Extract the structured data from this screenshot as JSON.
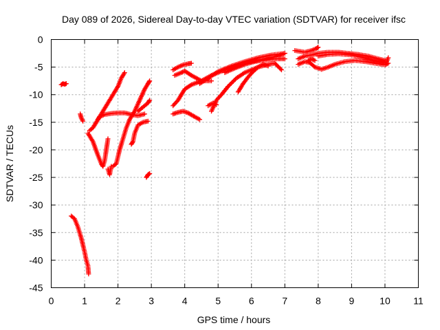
{
  "chart_data": {
    "type": "scatter",
    "title": "Day 089 of 2026, Sidereal Day-to-day VTEC variation (SDTVAR) for receiver ifsc",
    "xlabel": "GPS time / hours",
    "ylabel": "SDTVAR / TECUs",
    "xlim": [
      0,
      11
    ],
    "ylim": [
      -45,
      0
    ],
    "xticks": [
      "0",
      "1",
      "2",
      "3",
      "4",
      "5",
      "6",
      "7",
      "8",
      "9",
      "10",
      "11"
    ],
    "yticks": [
      "0",
      "-5",
      "-10",
      "-15",
      "-20",
      "-25",
      "-30",
      "-35",
      "-40",
      "-45"
    ],
    "grid": true,
    "marker": "plus",
    "color": "#ff0000",
    "series": [
      {
        "points": [
          [
            0.3,
            -8.2
          ],
          [
            0.35,
            -8.0
          ],
          [
            0.4,
            -8.1
          ],
          [
            0.45,
            -8.0
          ]
        ]
      },
      {
        "points": [
          [
            0.6,
            -32.0
          ],
          [
            0.7,
            -32.5
          ],
          [
            0.8,
            -34.0
          ],
          [
            0.9,
            -36.0
          ],
          [
            1.0,
            -38.5
          ],
          [
            1.05,
            -40.0
          ],
          [
            1.1,
            -41.0
          ],
          [
            1.12,
            -42.5
          ]
        ]
      },
      {
        "points": [
          [
            0.87,
            -13.5
          ],
          [
            0.9,
            -14.2
          ],
          [
            0.95,
            -14.8
          ]
        ]
      },
      {
        "points": [
          [
            1.1,
            -17.0
          ],
          [
            1.25,
            -18.5
          ],
          [
            1.4,
            -21.0
          ],
          [
            1.5,
            -22.5
          ],
          [
            1.55,
            -23.0
          ],
          [
            1.6,
            -22.0
          ],
          [
            1.65,
            -20.0
          ],
          [
            1.7,
            -18.0
          ]
        ]
      },
      {
        "points": [
          [
            1.15,
            -16.5
          ],
          [
            1.25,
            -16.0
          ],
          [
            1.35,
            -15.0
          ],
          [
            1.45,
            -14.0
          ],
          [
            1.6,
            -13.6
          ],
          [
            1.8,
            -13.4
          ],
          [
            2.0,
            -13.3
          ],
          [
            2.2,
            -13.3
          ],
          [
            2.4,
            -13.6
          ],
          [
            2.6,
            -13.8
          ],
          [
            2.8,
            -13.5
          ]
        ]
      },
      {
        "points": [
          [
            1.4,
            -14.5
          ],
          [
            1.55,
            -13.0
          ],
          [
            1.7,
            -11.5
          ],
          [
            1.85,
            -10.0
          ],
          [
            2.0,
            -8.5
          ],
          [
            2.1,
            -7.0
          ],
          [
            2.2,
            -6.0
          ]
        ]
      },
      {
        "points": [
          [
            1.7,
            -23.5
          ],
          [
            1.75,
            -24.5
          ],
          [
            1.8,
            -23.0
          ]
        ]
      },
      {
        "points": [
          [
            1.85,
            -23.0
          ],
          [
            1.95,
            -22.5
          ],
          [
            2.05,
            -20.0
          ],
          [
            2.15,
            -18.0
          ],
          [
            2.25,
            -16.0
          ],
          [
            2.35,
            -14.5
          ],
          [
            2.5,
            -13.0
          ],
          [
            2.65,
            -11.0
          ],
          [
            2.8,
            -9.0
          ],
          [
            2.9,
            -8.0
          ],
          [
            2.95,
            -7.5
          ]
        ]
      },
      {
        "points": [
          [
            2.4,
            -19.0
          ],
          [
            2.45,
            -18.5
          ],
          [
            2.5,
            -17.0
          ],
          [
            2.6,
            -15.5
          ],
          [
            2.75,
            -15.0
          ],
          [
            2.9,
            -14.8
          ]
        ]
      },
      {
        "points": [
          [
            2.85,
            -25.0
          ],
          [
            2.9,
            -24.5
          ],
          [
            2.95,
            -24.3
          ]
        ]
      },
      {
        "points": [
          [
            2.6,
            -13.0
          ],
          [
            2.7,
            -12.5
          ],
          [
            2.8,
            -12.0
          ],
          [
            2.9,
            -11.5
          ],
          [
            2.95,
            -11.0
          ]
        ]
      },
      {
        "points": [
          [
            3.65,
            -13.5
          ],
          [
            3.8,
            -13.2
          ],
          [
            3.95,
            -13.0
          ],
          [
            4.1,
            -13.3
          ],
          [
            4.3,
            -14.0
          ],
          [
            4.45,
            -14.5
          ]
        ]
      },
      {
        "points": [
          [
            3.65,
            -5.5
          ],
          [
            3.8,
            -5.0
          ],
          [
            3.95,
            -4.6
          ],
          [
            4.1,
            -4.4
          ],
          [
            4.2,
            -4.3
          ]
        ]
      },
      {
        "points": [
          [
            3.65,
            -12.0
          ],
          [
            3.8,
            -11.0
          ],
          [
            4.0,
            -9.0
          ],
          [
            4.2,
            -8.2
          ],
          [
            4.5,
            -7.5
          ],
          [
            4.8,
            -6.5
          ],
          [
            5.2,
            -5.5
          ],
          [
            5.6,
            -4.8
          ],
          [
            6.0,
            -4.0
          ],
          [
            6.4,
            -3.5
          ],
          [
            6.8,
            -3.0
          ],
          [
            7.0,
            -2.5
          ]
        ]
      },
      {
        "points": [
          [
            3.7,
            -6.5
          ],
          [
            3.9,
            -6.0
          ],
          [
            4.0,
            -5.7
          ],
          [
            4.2,
            -6.5
          ],
          [
            4.5,
            -7.5
          ],
          [
            4.8,
            -7.5
          ]
        ]
      },
      {
        "points": [
          [
            4.45,
            -8.0
          ],
          [
            4.7,
            -7.0
          ],
          [
            5.0,
            -5.8
          ],
          [
            5.4,
            -4.8
          ],
          [
            5.8,
            -4.0
          ],
          [
            6.2,
            -3.3
          ],
          [
            6.6,
            -2.8
          ],
          [
            7.0,
            -2.5
          ]
        ]
      },
      {
        "points": [
          [
            4.7,
            -12.0
          ],
          [
            4.85,
            -11.5
          ],
          [
            4.95,
            -11.8
          ]
        ]
      },
      {
        "points": [
          [
            4.8,
            -13.0
          ],
          [
            4.95,
            -11.0
          ],
          [
            5.1,
            -10.0
          ],
          [
            5.3,
            -8.5
          ],
          [
            5.55,
            -7.0
          ],
          [
            5.8,
            -6.0
          ],
          [
            6.0,
            -5.5
          ],
          [
            6.2,
            -5.0
          ],
          [
            6.5,
            -4.5
          ],
          [
            6.7,
            -4.3
          ],
          [
            6.9,
            -5.5
          ]
        ]
      },
      {
        "points": [
          [
            5.6,
            -9.5
          ],
          [
            5.75,
            -8.0
          ],
          [
            5.9,
            -6.8
          ],
          [
            6.05,
            -5.8
          ],
          [
            6.2,
            -5.0
          ],
          [
            6.35,
            -4.5
          ],
          [
            6.5,
            -4.8
          ]
        ]
      },
      {
        "points": [
          [
            5.2,
            -6.0
          ],
          [
            5.5,
            -5.2
          ],
          [
            5.8,
            -4.5
          ],
          [
            6.1,
            -4.0
          ],
          [
            6.5,
            -3.6
          ],
          [
            6.8,
            -3.5
          ],
          [
            7.0,
            -3.5
          ]
        ]
      },
      {
        "points": [
          [
            7.3,
            -2.0
          ],
          [
            7.6,
            -2.3
          ],
          [
            7.8,
            -2.0
          ],
          [
            7.95,
            -1.6
          ],
          [
            8.0,
            -1.4
          ]
        ]
      },
      {
        "points": [
          [
            7.4,
            -4.5
          ],
          [
            7.6,
            -4.0
          ],
          [
            7.75,
            -4.2
          ],
          [
            7.9,
            -5.0
          ],
          [
            8.1,
            -5.4
          ],
          [
            8.3,
            -5.0
          ],
          [
            8.5,
            -4.5
          ],
          [
            8.8,
            -4.0
          ],
          [
            9.1,
            -3.8
          ],
          [
            9.4,
            -4.0
          ],
          [
            9.7,
            -4.3
          ],
          [
            10.0,
            -4.6
          ],
          [
            10.1,
            -4.3
          ]
        ]
      },
      {
        "points": [
          [
            7.4,
            -3.5
          ],
          [
            7.6,
            -3.0
          ],
          [
            7.8,
            -2.8
          ],
          [
            8.0,
            -2.5
          ],
          [
            8.3,
            -2.3
          ],
          [
            8.6,
            -2.3
          ],
          [
            8.9,
            -2.5
          ],
          [
            9.2,
            -2.7
          ],
          [
            9.5,
            -3.0
          ],
          [
            9.8,
            -3.5
          ],
          [
            10.0,
            -3.8
          ]
        ]
      },
      {
        "points": [
          [
            8.0,
            -3.0
          ],
          [
            8.3,
            -2.7
          ],
          [
            8.6,
            -2.6
          ],
          [
            9.0,
            -2.8
          ],
          [
            9.3,
            -3.2
          ],
          [
            9.6,
            -3.7
          ],
          [
            9.9,
            -4.2
          ],
          [
            10.05,
            -4.0
          ],
          [
            10.1,
            -3.3
          ]
        ]
      },
      {
        "points": [
          [
            7.7,
            -3.8
          ],
          [
            7.8,
            -3.5
          ],
          [
            7.9,
            -3.8
          ]
        ]
      }
    ]
  }
}
